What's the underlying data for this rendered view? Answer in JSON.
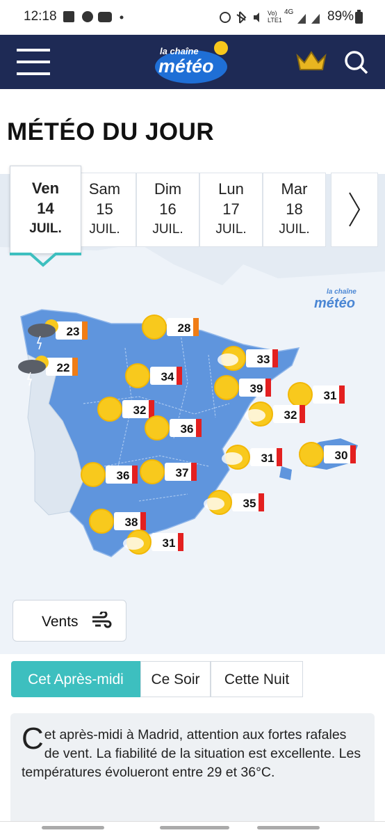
{
  "status_bar": {
    "time": "12:18",
    "network": "Vo) LTE1",
    "network_type": "4G",
    "battery": "89%"
  },
  "header": {
    "logo_small": "la chaîne",
    "logo_big": "météo"
  },
  "title": "MÉTÉO DU JOUR",
  "days": [
    {
      "name": "Ven",
      "date": "14",
      "month": "JUIL."
    },
    {
      "name": "Sam",
      "date": "15",
      "month": "JUIL."
    },
    {
      "name": "Dim",
      "date": "16",
      "month": "JUIL."
    },
    {
      "name": "Lun",
      "date": "17",
      "month": "JUIL."
    },
    {
      "name": "Mar",
      "date": "18",
      "month": "JUIL."
    }
  ],
  "map": {
    "temperatures": [
      "23",
      "28",
      "22",
      "33",
      "34",
      "39",
      "31",
      "32",
      "32",
      "36",
      "31",
      "30",
      "36",
      "37",
      "35",
      "38",
      "31"
    ]
  },
  "wind_button": "Vents",
  "period_tabs": [
    "Cet Après-midi",
    "Ce Soir",
    "Cette Nuit"
  ],
  "forecast_text": "Cet après-midi à Madrid, attention aux fortes rafales de vent. La fiabilité de la situation est excellente. Les températures évolueront entre 29 et 36°C."
}
